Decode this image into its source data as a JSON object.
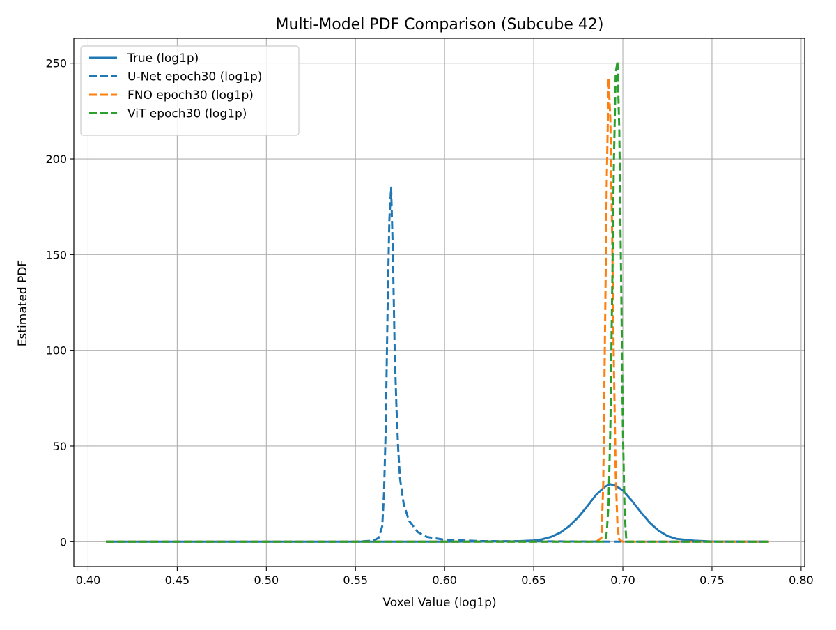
{
  "chart_data": {
    "type": "line",
    "title": "Multi-Model PDF Comparison (Subcube 42)",
    "xlabel": "Voxel Value (log1p)",
    "ylabel": "Estimated PDF",
    "xlim": [
      0.392,
      0.802
    ],
    "ylim": [
      -13,
      263
    ],
    "x_ticks": [
      0.4,
      0.45,
      0.5,
      0.55,
      0.6,
      0.65,
      0.7,
      0.75,
      0.8
    ],
    "x_tick_labels": [
      "0.40",
      "0.45",
      "0.50",
      "0.55",
      "0.60",
      "0.65",
      "0.70",
      "0.75",
      "0.80"
    ],
    "y_ticks": [
      0,
      50,
      100,
      150,
      200,
      250
    ],
    "y_tick_labels": [
      "0",
      "50",
      "100",
      "150",
      "200",
      "250"
    ],
    "grid": true,
    "legend_position": "top-left",
    "series": [
      {
        "name": "True (log1p)",
        "color": "#1f77b4",
        "style": "solid",
        "x": [
          0.41,
          0.6,
          0.64,
          0.65,
          0.655,
          0.66,
          0.665,
          0.67,
          0.675,
          0.68,
          0.685,
          0.69,
          0.693,
          0.696,
          0.7,
          0.705,
          0.71,
          0.715,
          0.72,
          0.725,
          0.73,
          0.74,
          0.75,
          0.782
        ],
        "y": [
          0,
          0,
          0.2,
          0.6,
          1.3,
          2.6,
          4.8,
          8.2,
          12.8,
          18.5,
          24.5,
          28.8,
          30,
          29.2,
          26.8,
          21.5,
          15.5,
          10,
          5.8,
          3,
          1.5,
          0.5,
          0.1,
          0
        ]
      },
      {
        "name": "U-Net epoch30 (log1p)",
        "color": "#1f77b4",
        "style": "dashed",
        "x": [
          0.41,
          0.55,
          0.56,
          0.563,
          0.565,
          0.566,
          0.567,
          0.568,
          0.569,
          0.57,
          0.571,
          0.572,
          0.573,
          0.574,
          0.575,
          0.577,
          0.58,
          0.585,
          0.59,
          0.6,
          0.62,
          0.7,
          0.782
        ],
        "y": [
          0,
          0,
          0.5,
          2,
          8,
          25,
          60,
          120,
          168,
          185,
          150,
          100,
          70,
          48,
          33,
          20,
          11,
          5,
          2.5,
          1,
          0.3,
          0,
          0
        ]
      },
      {
        "name": "FNO epoch30 (log1p)",
        "color": "#ff7f0e",
        "style": "dashed",
        "x": [
          0.41,
          0.685,
          0.688,
          0.689,
          0.69,
          0.691,
          0.692,
          0.693,
          0.694,
          0.695,
          0.696,
          0.697,
          0.698,
          0.7,
          0.782
        ],
        "y": [
          0,
          0,
          2,
          30,
          110,
          190,
          242,
          220,
          160,
          90,
          35,
          8,
          1,
          0,
          0
        ]
      },
      {
        "name": "ViT epoch30 (log1p)",
        "color": "#2ca02c",
        "style": "dashed",
        "x": [
          0.41,
          0.69,
          0.691,
          0.692,
          0.693,
          0.694,
          0.695,
          0.696,
          0.697,
          0.698,
          0.699,
          0.7,
          0.701,
          0.702,
          0.782
        ],
        "y": [
          0,
          0,
          5,
          20,
          60,
          130,
          200,
          245,
          251,
          215,
          140,
          60,
          15,
          0,
          0
        ]
      }
    ]
  }
}
